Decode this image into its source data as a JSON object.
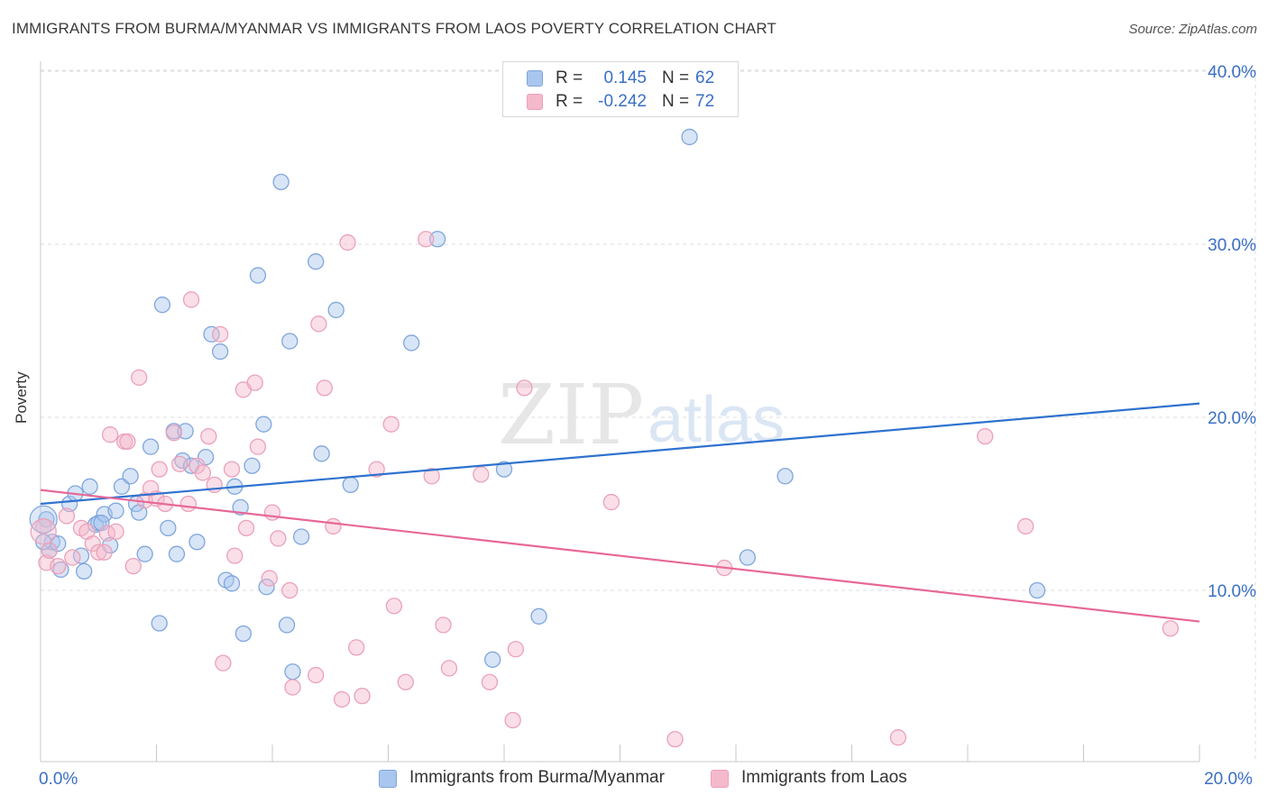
{
  "header": {
    "title": "IMMIGRANTS FROM BURMA/MYANMAR VS IMMIGRANTS FROM LAOS POVERTY CORRELATION CHART",
    "source": "Source: ZipAtlas.com"
  },
  "watermark": {
    "zip": "ZIP",
    "atlas": "atlas"
  },
  "colors": {
    "series1_fill": "#a9c6ee",
    "series1_stroke": "#7fa6dd",
    "series1_line": "#2f72cf",
    "series2_fill": "#f5b9cc",
    "series2_stroke": "#eba1b9",
    "series2_line": "#e76897",
    "axis_label": "#3a6fc4",
    "grid": "#dcdcdc"
  },
  "legend_top": [
    {
      "r_label": "R =",
      "r_value": "0.145",
      "n_label": "N =",
      "n_value": "62"
    },
    {
      "r_label": "R =",
      "r_value": "-0.242",
      "n_label": "N =",
      "n_value": "72"
    }
  ],
  "legend_bottom": [
    {
      "label": "Immigrants from Burma/Myanmar"
    },
    {
      "label": "Immigrants from Laos"
    }
  ],
  "chart_data": {
    "type": "scatter",
    "title": "IMMIGRANTS FROM BURMA/MYANMAR VS IMMIGRANTS FROM LAOS POVERTY CORRELATION CHART",
    "xlabel": "",
    "ylabel": "Poverty",
    "xlim": [
      0,
      20
    ],
    "ylim": [
      0,
      42
    ],
    "x_tick_labels": [
      {
        "value": 0,
        "label": "0.0%"
      },
      {
        "value": 20,
        "label": "20.0%"
      }
    ],
    "y_tick_labels": [
      {
        "value": 10,
        "label": "10.0%"
      },
      {
        "value": 20,
        "label": "20.0%"
      },
      {
        "value": 30,
        "label": "30.0%"
      },
      {
        "value": 40,
        "label": "40.0%"
      }
    ],
    "x_minor_ticks": [
      0,
      2,
      4,
      6,
      8,
      10,
      12,
      14,
      16,
      18,
      20
    ],
    "grid": true,
    "legend_position": "top-center",
    "series": [
      {
        "name": "Immigrants from Burma/Myanmar",
        "R": 0.145,
        "N": 62,
        "trend": {
          "x": [
            0,
            20
          ],
          "y": [
            15.0,
            20.8
          ]
        },
        "points": [
          [
            0.1,
            14.1
          ],
          [
            0.15,
            12.3
          ],
          [
            0.2,
            12.8
          ],
          [
            0.3,
            12.7
          ],
          [
            0.35,
            11.2
          ],
          [
            0.5,
            15.0
          ],
          [
            0.6,
            15.6
          ],
          [
            0.7,
            12.0
          ],
          [
            0.75,
            11.1
          ],
          [
            0.85,
            16.0
          ],
          [
            0.95,
            13.8
          ],
          [
            1.0,
            13.9
          ],
          [
            1.1,
            14.4
          ],
          [
            1.2,
            12.6
          ],
          [
            1.3,
            14.6
          ],
          [
            1.4,
            16.0
          ],
          [
            1.55,
            16.6
          ],
          [
            1.65,
            15.0
          ],
          [
            1.7,
            14.5
          ],
          [
            1.8,
            12.1
          ],
          [
            1.9,
            18.3
          ],
          [
            2.05,
            8.1
          ],
          [
            2.1,
            26.5
          ],
          [
            2.2,
            13.6
          ],
          [
            2.3,
            19.2
          ],
          [
            2.35,
            12.1
          ],
          [
            2.45,
            17.5
          ],
          [
            2.5,
            19.2
          ],
          [
            2.6,
            17.2
          ],
          [
            2.7,
            12.8
          ],
          [
            2.85,
            17.7
          ],
          [
            2.95,
            24.8
          ],
          [
            3.1,
            23.8
          ],
          [
            3.2,
            10.6
          ],
          [
            3.3,
            10.4
          ],
          [
            3.35,
            16.0
          ],
          [
            3.45,
            14.8
          ],
          [
            3.5,
            7.5
          ],
          [
            3.65,
            17.2
          ],
          [
            3.75,
            28.2
          ],
          [
            3.85,
            19.6
          ],
          [
            3.9,
            10.2
          ],
          [
            4.15,
            33.6
          ],
          [
            4.25,
            8.0
          ],
          [
            4.3,
            24.4
          ],
          [
            4.35,
            5.3
          ],
          [
            4.5,
            13.1
          ],
          [
            4.75,
            29.0
          ],
          [
            4.85,
            17.9
          ],
          [
            5.1,
            26.2
          ],
          [
            5.35,
            16.1
          ],
          [
            6.4,
            24.3
          ],
          [
            6.85,
            30.3
          ],
          [
            7.8,
            6.0
          ],
          [
            8.0,
            17.0
          ],
          [
            8.6,
            8.5
          ],
          [
            11.2,
            36.2
          ],
          [
            12.2,
            11.9
          ],
          [
            12.85,
            16.6
          ],
          [
            17.2,
            10.0
          ],
          [
            0.05,
            12.8
          ],
          [
            1.05,
            13.9
          ]
        ]
      },
      {
        "name": "Immigrants from Laos",
        "R": -0.242,
        "N": 72,
        "trend": {
          "x": [
            0,
            20
          ],
          "y": [
            15.8,
            8.2
          ]
        },
        "points": [
          [
            0.05,
            13.7
          ],
          [
            0.1,
            11.6
          ],
          [
            0.15,
            12.3
          ],
          [
            0.3,
            11.4
          ],
          [
            0.45,
            14.3
          ],
          [
            0.55,
            11.9
          ],
          [
            0.7,
            13.6
          ],
          [
            0.8,
            13.4
          ],
          [
            0.9,
            12.7
          ],
          [
            1.0,
            12.2
          ],
          [
            1.1,
            12.2
          ],
          [
            1.15,
            13.3
          ],
          [
            1.2,
            19.0
          ],
          [
            1.3,
            13.4
          ],
          [
            1.45,
            18.6
          ],
          [
            1.5,
            18.6
          ],
          [
            1.6,
            11.4
          ],
          [
            1.7,
            22.3
          ],
          [
            1.8,
            15.2
          ],
          [
            1.9,
            15.9
          ],
          [
            2.0,
            15.3
          ],
          [
            2.05,
            17.0
          ],
          [
            2.15,
            15.0
          ],
          [
            2.3,
            19.1
          ],
          [
            2.4,
            17.3
          ],
          [
            2.55,
            15.0
          ],
          [
            2.6,
            26.8
          ],
          [
            2.7,
            17.2
          ],
          [
            2.8,
            16.8
          ],
          [
            2.9,
            18.9
          ],
          [
            3.0,
            16.1
          ],
          [
            3.1,
            24.8
          ],
          [
            3.15,
            5.8
          ],
          [
            3.3,
            17.0
          ],
          [
            3.35,
            12.0
          ],
          [
            3.5,
            21.6
          ],
          [
            3.55,
            13.6
          ],
          [
            3.7,
            22.0
          ],
          [
            3.75,
            18.3
          ],
          [
            3.95,
            10.7
          ],
          [
            4.0,
            14.5
          ],
          [
            4.1,
            13.0
          ],
          [
            4.3,
            10.0
          ],
          [
            4.35,
            4.4
          ],
          [
            4.75,
            5.1
          ],
          [
            4.8,
            25.4
          ],
          [
            4.9,
            21.7
          ],
          [
            5.05,
            13.7
          ],
          [
            5.2,
            3.7
          ],
          [
            5.3,
            30.1
          ],
          [
            5.45,
            6.7
          ],
          [
            5.55,
            3.9
          ],
          [
            5.8,
            17.0
          ],
          [
            6.05,
            19.6
          ],
          [
            6.1,
            9.1
          ],
          [
            6.3,
            4.7
          ],
          [
            6.65,
            30.3
          ],
          [
            6.75,
            16.6
          ],
          [
            6.95,
            8.0
          ],
          [
            7.05,
            5.5
          ],
          [
            7.6,
            16.7
          ],
          [
            7.75,
            4.7
          ],
          [
            8.15,
            2.5
          ],
          [
            8.2,
            6.6
          ],
          [
            8.35,
            21.7
          ],
          [
            9.85,
            15.1
          ],
          [
            10.95,
            1.4
          ],
          [
            11.8,
            11.3
          ],
          [
            14.8,
            1.5
          ],
          [
            16.3,
            18.9
          ],
          [
            17.0,
            13.7
          ],
          [
            19.5,
            7.8
          ]
        ]
      }
    ]
  }
}
